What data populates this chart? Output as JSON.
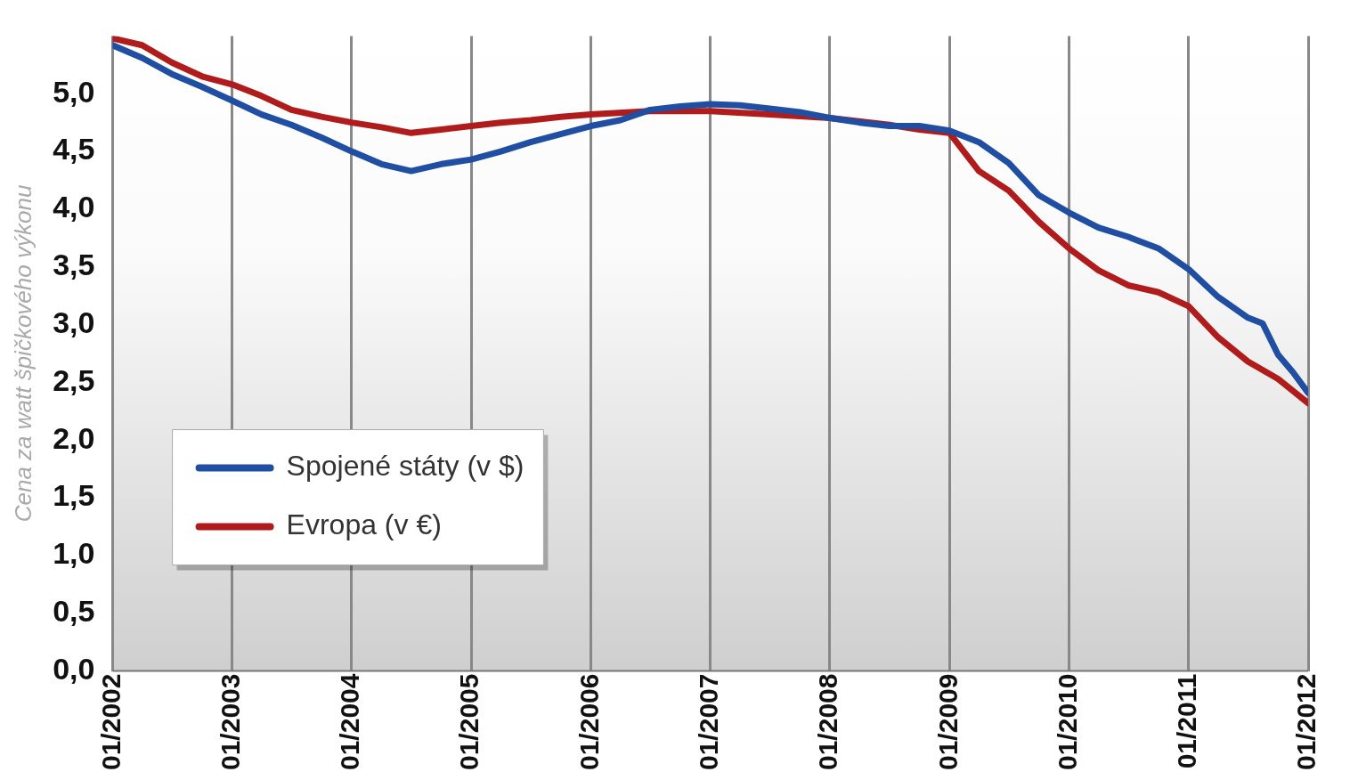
{
  "chart_data": {
    "type": "line",
    "ylabel": "Cena za watt špičkového výkonu",
    "xlim": [
      "2002-01",
      "2012-01"
    ],
    "ylim": [
      0,
      5.5
    ],
    "xticks": [
      {
        "value": "2002-01",
        "label": "01/2002"
      },
      {
        "value": "2003-01",
        "label": "01/2003"
      },
      {
        "value": "2004-01",
        "label": "01/2004"
      },
      {
        "value": "2005-01",
        "label": "01/2005"
      },
      {
        "value": "2006-01",
        "label": "01/2006"
      },
      {
        "value": "2007-01",
        "label": "01/2007"
      },
      {
        "value": "2008-01",
        "label": "01/2008"
      },
      {
        "value": "2009-01",
        "label": "01/2009"
      },
      {
        "value": "2010-01",
        "label": "01/2010"
      },
      {
        "value": "2011-01",
        "label": "01/2011"
      },
      {
        "value": "2012-01",
        "label": "01/2012"
      }
    ],
    "yticks": [
      {
        "value": 0,
        "label": "0,0"
      },
      {
        "value": 0.5,
        "label": "0,5"
      },
      {
        "value": 1,
        "label": "1,0"
      },
      {
        "value": 1.5,
        "label": "1,5"
      },
      {
        "value": 2,
        "label": "2,0"
      },
      {
        "value": 2.5,
        "label": "2,5"
      },
      {
        "value": 3,
        "label": "3,0"
      },
      {
        "value": 3.5,
        "label": "3,5"
      },
      {
        "value": 4,
        "label": "4,0"
      },
      {
        "value": 4.5,
        "label": "4,5"
      },
      {
        "value": 5,
        "label": "5,0"
      }
    ],
    "grid": "x",
    "legend": "bottom left",
    "marker": "none",
    "line_style": "solid",
    "series": [
      {
        "name": "Spojené státy (v $)",
        "color": "#1f4ea3",
        "x": [
          "2002-01",
          "2002-04",
          "2002-07",
          "2002-10",
          "2003-01",
          "2003-04",
          "2003-07",
          "2003-10",
          "2004-01",
          "2004-04",
          "2004-07",
          "2004-10",
          "2005-01",
          "2005-04",
          "2005-07",
          "2005-10",
          "2006-01",
          "2006-04",
          "2006-07",
          "2006-10",
          "2007-01",
          "2007-04",
          "2007-07",
          "2007-10",
          "2008-01",
          "2008-04",
          "2008-07",
          "2008-10",
          "2009-01",
          "2009-04",
          "2009-07",
          "2009-10",
          "2010-01",
          "2010-04",
          "2010-07",
          "2010-10",
          "2011-01",
          "2011-04",
          "2011-07",
          "2011-08-15",
          "2011-10",
          "2011-11-15",
          "2012-01"
        ],
        "values": [
          5.42,
          5.31,
          5.17,
          5.06,
          4.94,
          4.82,
          4.73,
          4.62,
          4.5,
          4.39,
          4.33,
          4.39,
          4.43,
          4.5,
          4.58,
          4.65,
          4.72,
          4.77,
          4.86,
          4.89,
          4.91,
          4.9,
          4.87,
          4.84,
          4.79,
          4.75,
          4.72,
          4.72,
          4.68,
          4.58,
          4.4,
          4.12,
          3.97,
          3.84,
          3.76,
          3.66,
          3.48,
          3.24,
          3.06,
          3.01,
          2.74,
          2.59,
          2.41
        ]
      },
      {
        "name": "Evropa (v €)",
        "color": "#b01c1c",
        "x": [
          "2002-01",
          "2002-04",
          "2002-07",
          "2002-10",
          "2003-01",
          "2003-04",
          "2003-07",
          "2003-10",
          "2004-01",
          "2004-04",
          "2004-07",
          "2004-10",
          "2005-01",
          "2005-04",
          "2005-07",
          "2005-10",
          "2006-01",
          "2006-07",
          "2007-01",
          "2007-07",
          "2008-01",
          "2008-07",
          "2008-10",
          "2009-01",
          "2009-04",
          "2009-07",
          "2009-10",
          "2010-01",
          "2010-04",
          "2010-07",
          "2010-10",
          "2011-01",
          "2011-04",
          "2011-07",
          "2011-10",
          "2012-01"
        ],
        "values": [
          5.48,
          5.42,
          5.27,
          5.15,
          5.08,
          4.98,
          4.86,
          4.8,
          4.75,
          4.71,
          4.66,
          4.69,
          4.72,
          4.75,
          4.77,
          4.8,
          4.82,
          4.85,
          4.85,
          4.82,
          4.79,
          4.73,
          4.69,
          4.66,
          4.33,
          4.16,
          3.89,
          3.66,
          3.47,
          3.34,
          3.28,
          3.16,
          2.89,
          2.68,
          2.53,
          2.32
        ]
      }
    ]
  }
}
